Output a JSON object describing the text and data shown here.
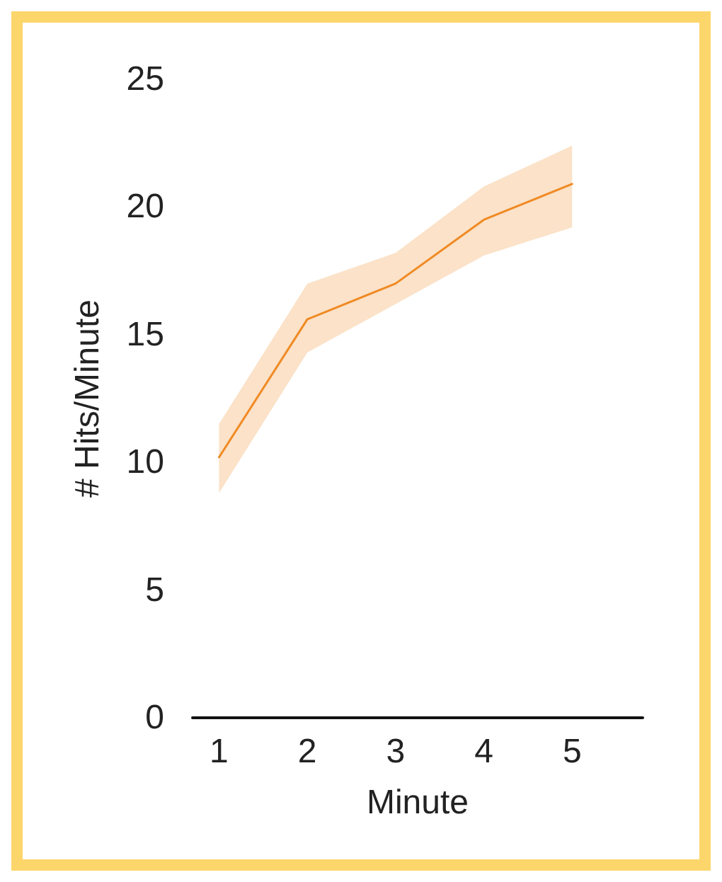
{
  "chart_data": {
    "type": "line",
    "xlabel": "Minute",
    "ylabel": "# Hits/Minute",
    "x": [
      1,
      2,
      3,
      4,
      5
    ],
    "series": [
      {
        "color": "#f08a24",
        "values": [
          10.2,
          15.6,
          17.0,
          19.5,
          20.9
        ],
        "lower": [
          8.8,
          14.3,
          16.2,
          18.1,
          19.2
        ],
        "upper": [
          11.5,
          17.0,
          18.2,
          20.8,
          22.4
        ]
      }
    ],
    "xlim": [
      0.7,
      5.8
    ],
    "xticks": [
      1,
      2,
      3,
      4,
      5
    ],
    "ylim": [
      0,
      25
    ],
    "yticks": [
      0,
      5,
      10,
      15,
      20,
      25
    ],
    "grid": false,
    "marker": "none",
    "line_style": "solid"
  }
}
